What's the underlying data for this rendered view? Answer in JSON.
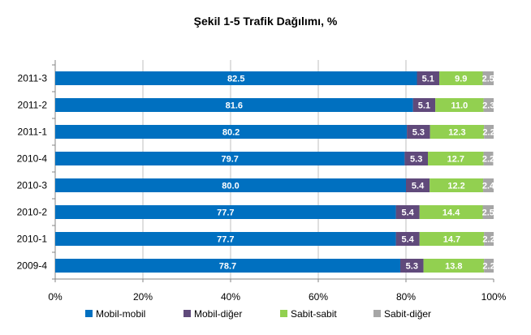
{
  "chart_data": {
    "type": "bar",
    "orientation": "horizontal",
    "stacked": true,
    "title": "Şekil 1-5 Trafik Dağılımı, %",
    "categories": [
      "2011-3",
      "2011-2",
      "2011-1",
      "2010-4",
      "2010-3",
      "2010-2",
      "2010-1",
      "2009-4"
    ],
    "series": [
      {
        "name": "Mobil-mobil",
        "color": "#0070C0",
        "values": [
          82.5,
          81.6,
          80.2,
          79.7,
          80.0,
          77.7,
          77.7,
          78.7
        ],
        "labels": [
          "82.5",
          "81.6",
          "80.2",
          "79.7",
          "80.0",
          "77.7",
          "77.7",
          "78.7"
        ]
      },
      {
        "name": "Mobil-diğer",
        "color": "#604A7B",
        "values": [
          5.1,
          5.1,
          5.3,
          5.3,
          5.4,
          5.4,
          5.4,
          5.3
        ],
        "labels": [
          "5.1",
          "5.1",
          "5.3",
          "5.3",
          "5.4",
          "5.4",
          "5.4",
          "5.3"
        ]
      },
      {
        "name": "Sabit-sabit",
        "color": "#92D050",
        "values": [
          9.9,
          11.0,
          12.3,
          12.7,
          12.2,
          14.4,
          14.7,
          13.8
        ],
        "labels": [
          "9.9",
          "11.0",
          "12.3",
          "12.7",
          "12.2",
          "14.4",
          "14.7",
          "13.8"
        ]
      },
      {
        "name": "Sabit-diğer",
        "color": "#A6A6A6",
        "values": [
          2.5,
          2.3,
          2.2,
          2.2,
          2.4,
          2.5,
          2.2,
          2.2
        ],
        "labels": [
          "2.5",
          "2.3",
          "2.2",
          "2.2",
          "2.4",
          "2.5",
          "2.2",
          "2.2"
        ]
      }
    ],
    "xlim": [
      0,
      100
    ],
    "x_ticks": [
      "0%",
      "20%",
      "40%",
      "60%",
      "80%",
      "100%"
    ],
    "grid": true,
    "legend_position": "bottom"
  }
}
